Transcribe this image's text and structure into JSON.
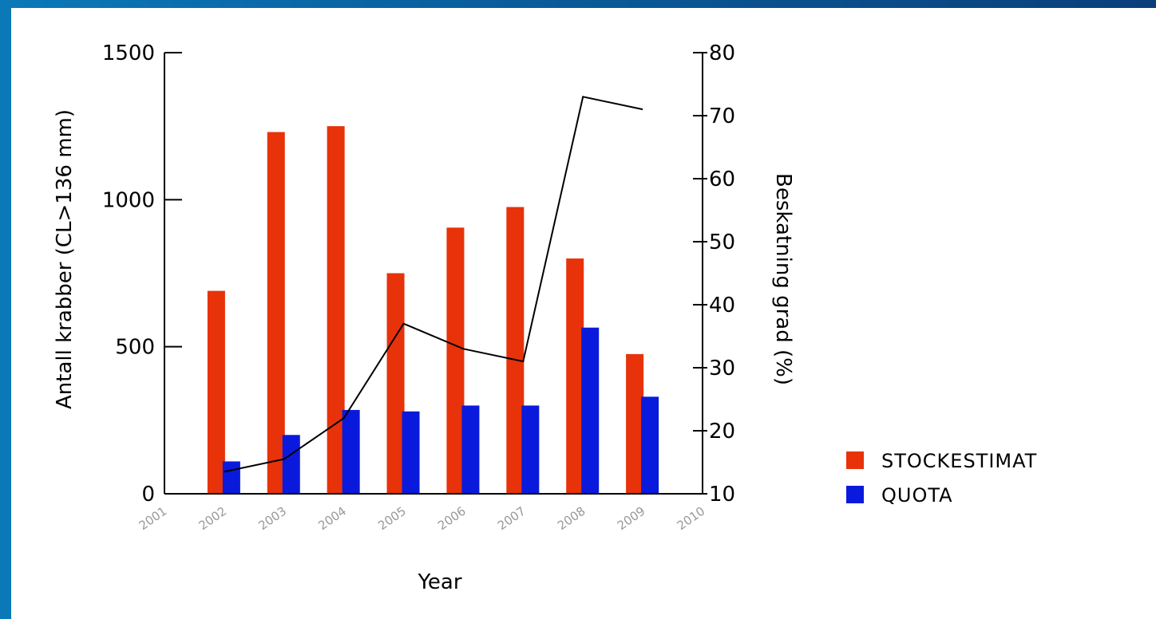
{
  "chart_data": {
    "type": "bar",
    "x_categories": [
      "2001",
      "2002",
      "2003",
      "2004",
      "2005",
      "2006",
      "2007",
      "2008",
      "2009",
      "2010"
    ],
    "xlabel": "Year",
    "ylabel_left": "Antall krabber (CL>136 mm)",
    "ylabel_right": "Beskatning grad (%)",
    "ylim_left": [
      0,
      1500
    ],
    "ylim_right": [
      10,
      80
    ],
    "yticks_left": [
      "0",
      "500",
      "1000",
      "1500"
    ],
    "yticks_right": [
      "10",
      "20",
      "30",
      "40",
      "50",
      "60",
      "70",
      "80"
    ],
    "series": [
      {
        "name": "STOCKESTIMAT",
        "color": "#e8320a",
        "x": [
          "2002",
          "2003",
          "2004",
          "2005",
          "2006",
          "2007",
          "2008",
          "2009"
        ],
        "values": [
          690,
          1230,
          1250,
          750,
          905,
          975,
          800,
          475
        ]
      },
      {
        "name": "QUOTA",
        "color": "#0a1adc",
        "x": [
          "2002",
          "2003",
          "2004",
          "2005",
          "2006",
          "2007",
          "2008",
          "2009"
        ],
        "values": [
          110,
          200,
          285,
          280,
          300,
          300,
          565,
          330
        ]
      }
    ],
    "line": {
      "axis": "right",
      "color": "#000000",
      "x": [
        "2002",
        "2003",
        "2004",
        "2005",
        "2006",
        "2007",
        "2008",
        "2009"
      ],
      "values": [
        13.5,
        15.5,
        22,
        37,
        33,
        31,
        73,
        71
      ]
    },
    "legend": {
      "position": "right",
      "items": [
        "STOCKESTIMAT",
        "QUOTA"
      ]
    }
  }
}
